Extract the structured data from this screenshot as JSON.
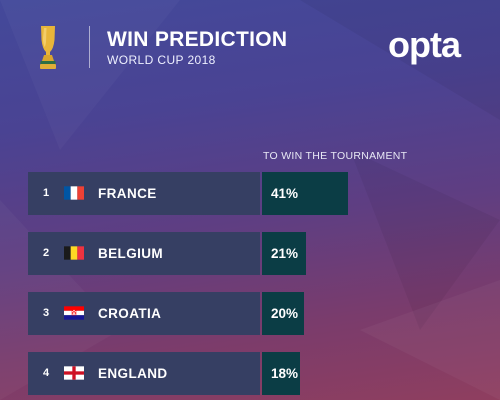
{
  "header": {
    "title": "WIN PREDICTION",
    "subtitle": "WORLD CUP 2018",
    "logo": "opta",
    "trophy_icon": "trophy-icon"
  },
  "colors": {
    "row_background": "#363f63",
    "bar_fill": "#0b3d45",
    "text": "#ffffff",
    "trophy_gold": "#e8b53a"
  },
  "chart_data": {
    "type": "bar",
    "orientation": "horizontal",
    "title": "WIN PREDICTION",
    "subtitle": "WORLD CUP 2018",
    "column_header": "TO WIN THE TOURNAMENT",
    "categories": [
      "FRANCE",
      "BELGIUM",
      "CROATIA",
      "ENGLAND"
    ],
    "ranks": [
      "1",
      "2",
      "3",
      "4"
    ],
    "values": [
      41,
      21,
      20,
      18
    ],
    "value_labels": [
      "41%",
      "21%",
      "20%",
      "18%"
    ],
    "flags": [
      "france-flag-icon",
      "belgium-flag-icon",
      "croatia-flag-icon",
      "england-flag-icon"
    ],
    "unit": "%",
    "grid": false,
    "legend": "none"
  }
}
